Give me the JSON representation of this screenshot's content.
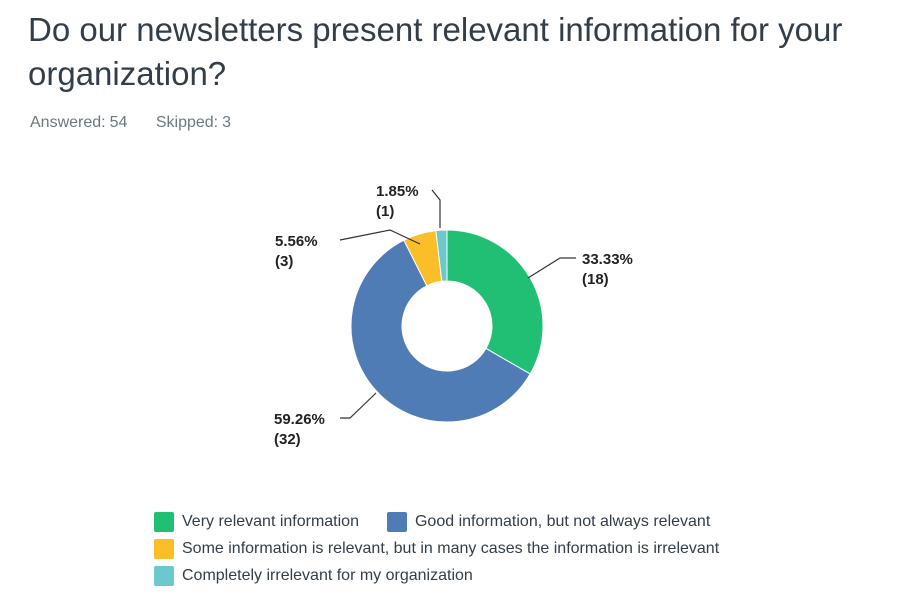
{
  "question": {
    "title": "Do our newsletters present relevant information for your organization?"
  },
  "stats": {
    "answered_label": "Answered:",
    "answered_value": "54",
    "skipped_label": "Skipped:",
    "skipped_value": "3"
  },
  "chart_data": {
    "type": "pie",
    "donut": true,
    "slices": [
      {
        "label": "Very relevant information",
        "percent": 33.33,
        "count": 18,
        "percent_text": "33.33%",
        "count_text": "(18)",
        "color": "#21bf73"
      },
      {
        "label": "Good information, but not always relevant",
        "percent": 59.26,
        "count": 32,
        "percent_text": "59.26%",
        "count_text": "(32)",
        "color": "#507cb6"
      },
      {
        "label": "Some information is relevant, but in many cases the information is irrelevant",
        "percent": 5.56,
        "count": 3,
        "percent_text": "5.56%",
        "count_text": "(3)",
        "color": "#f9be28"
      },
      {
        "label": "Completely irrelevant for my organization",
        "percent": 1.85,
        "count": 1,
        "percent_text": "1.85%",
        "count_text": "(1)",
        "color": "#6bc8cd"
      }
    ],
    "legend_position": "bottom"
  }
}
